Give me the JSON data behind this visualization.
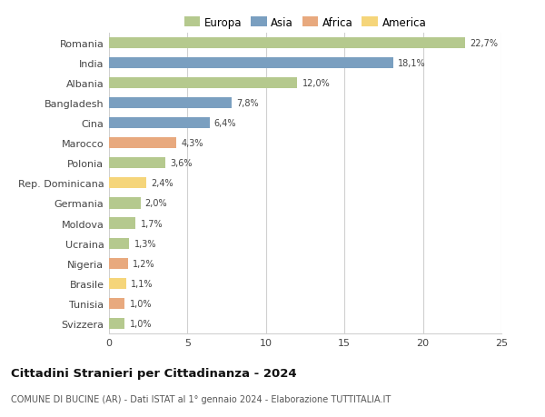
{
  "categories": [
    "Svizzera",
    "Tunisia",
    "Brasile",
    "Nigeria",
    "Ucraina",
    "Moldova",
    "Germania",
    "Rep. Dominicana",
    "Polonia",
    "Marocco",
    "Cina",
    "Bangladesh",
    "Albania",
    "India",
    "Romania"
  ],
  "values": [
    1.0,
    1.0,
    1.1,
    1.2,
    1.3,
    1.7,
    2.0,
    2.4,
    3.6,
    4.3,
    6.4,
    7.8,
    12.0,
    18.1,
    22.7
  ],
  "labels": [
    "1,0%",
    "1,0%",
    "1,1%",
    "1,2%",
    "1,3%",
    "1,7%",
    "2,0%",
    "2,4%",
    "3,6%",
    "4,3%",
    "6,4%",
    "7,8%",
    "12,0%",
    "18,1%",
    "22,7%"
  ],
  "colors": [
    "#b5c98e",
    "#e8a97e",
    "#f5d57a",
    "#e8a97e",
    "#b5c98e",
    "#b5c98e",
    "#b5c98e",
    "#f5d57a",
    "#b5c98e",
    "#e8a97e",
    "#7a9fc0",
    "#7a9fc0",
    "#b5c98e",
    "#7a9fc0",
    "#b5c98e"
  ],
  "legend_labels": [
    "Europa",
    "Asia",
    "Africa",
    "America"
  ],
  "legend_colors": [
    "#b5c98e",
    "#7a9fc0",
    "#e8a97e",
    "#f5d57a"
  ],
  "title": "Cittadini Stranieri per Cittadinanza - 2024",
  "subtitle": "COMUNE DI BUCINE (AR) - Dati ISTAT al 1° gennaio 2024 - Elaborazione TUTTITALIA.IT",
  "xlim": [
    0,
    25
  ],
  "xticks": [
    0,
    5,
    10,
    15,
    20,
    25
  ],
  "background_color": "#ffffff",
  "grid_color": "#d0d0d0",
  "bar_height": 0.55
}
